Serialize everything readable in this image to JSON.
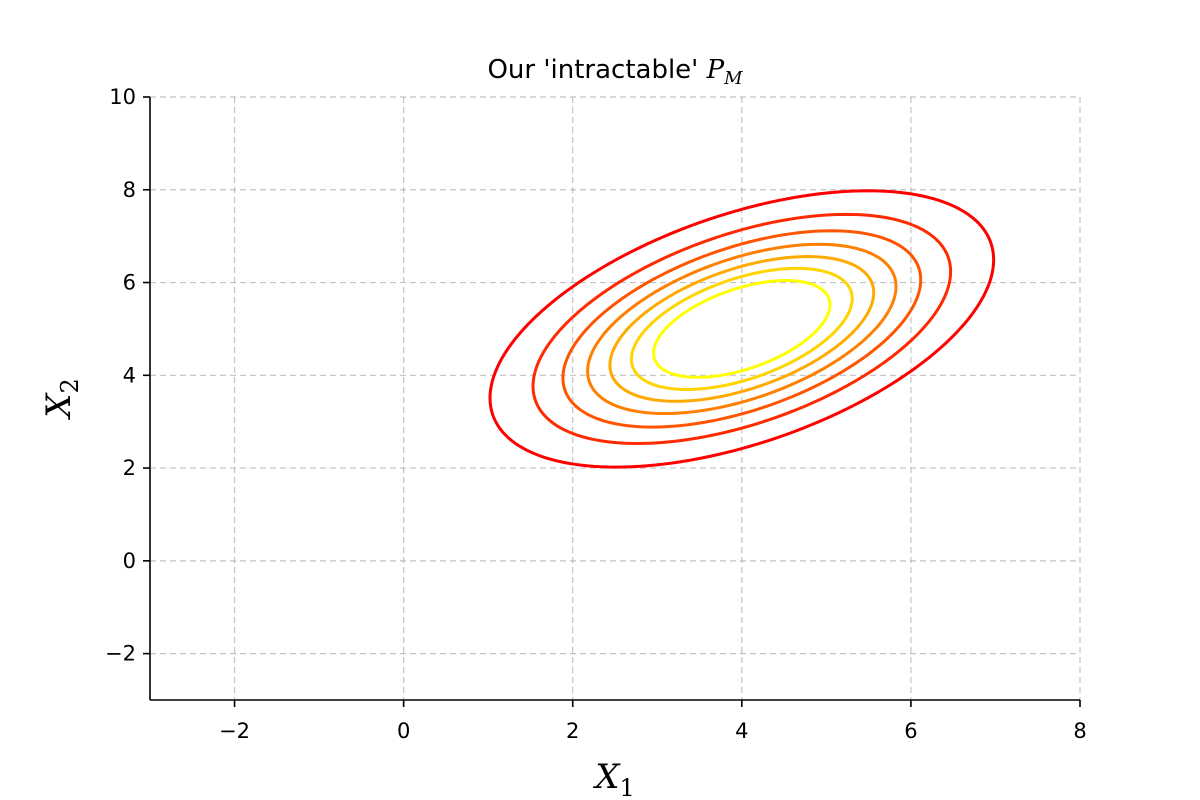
{
  "chart_data": {
    "type": "contour",
    "title": "Our 'intractable' ",
    "title_math": "P",
    "title_math_sub": "M",
    "xlabel": "X",
    "xlabel_sub": "1",
    "ylabel": "X",
    "ylabel_sub": "2",
    "xlim": [
      -3,
      8
    ],
    "ylim": [
      -3,
      10
    ],
    "xticks": [
      -2,
      0,
      2,
      4,
      6,
      8
    ],
    "yticks": [
      -2,
      0,
      2,
      4,
      6,
      8,
      10
    ],
    "xtick_labels": [
      "−2",
      "0",
      "2",
      "4",
      "6",
      "8"
    ],
    "ytick_labels": [
      "−2",
      "0",
      "2",
      "4",
      "6",
      "8",
      "10"
    ],
    "grid": true,
    "distribution": {
      "mean": [
        4,
        5
      ],
      "cov": [
        [
          2.0,
          1.0
        ],
        [
          1.0,
          2.0
        ]
      ]
    },
    "contours": [
      {
        "level": 0.01,
        "color": "#ff0000"
      },
      {
        "level": 0.02,
        "color": "#ff2a00"
      },
      {
        "level": 0.03,
        "color": "#ff5500"
      },
      {
        "level": 0.04,
        "color": "#ff7f00"
      },
      {
        "level": 0.05,
        "color": "#ffaa00"
      },
      {
        "level": 0.06,
        "color": "#ffd400"
      },
      {
        "level": 0.07,
        "color": "#ffff00"
      }
    ]
  }
}
